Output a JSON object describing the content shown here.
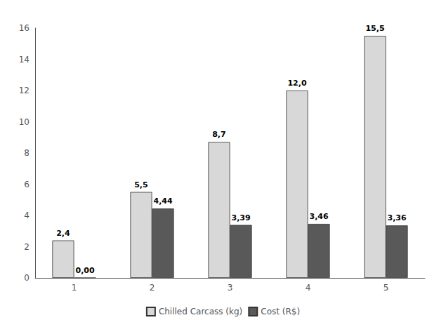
{
  "chart_data": {
    "type": "bar",
    "categories": [
      1,
      2,
      3,
      4,
      5
    ],
    "series": [
      {
        "name": "Chilled Carcass (kg)",
        "color": "#d8d8d8",
        "values": [
          2.4,
          5.5,
          8.7,
          12.0,
          15.5
        ],
        "value_labels": [
          "2,4",
          "5,5",
          "8,7",
          "12,0",
          "15,5"
        ]
      },
      {
        "name": "Cost (R$)",
        "color": "#595959",
        "values": [
          0.0,
          4.44,
          3.39,
          3.46,
          3.36
        ],
        "value_labels": [
          "0,00",
          "4,44",
          "3,39",
          "3,46",
          "3,36"
        ]
      }
    ],
    "ylim": [
      0,
      16
    ],
    "yticks": [
      0,
      2,
      4,
      6,
      8,
      10,
      12,
      14,
      16
    ],
    "grid": false,
    "legend": "bottom",
    "data_labels": true
  }
}
